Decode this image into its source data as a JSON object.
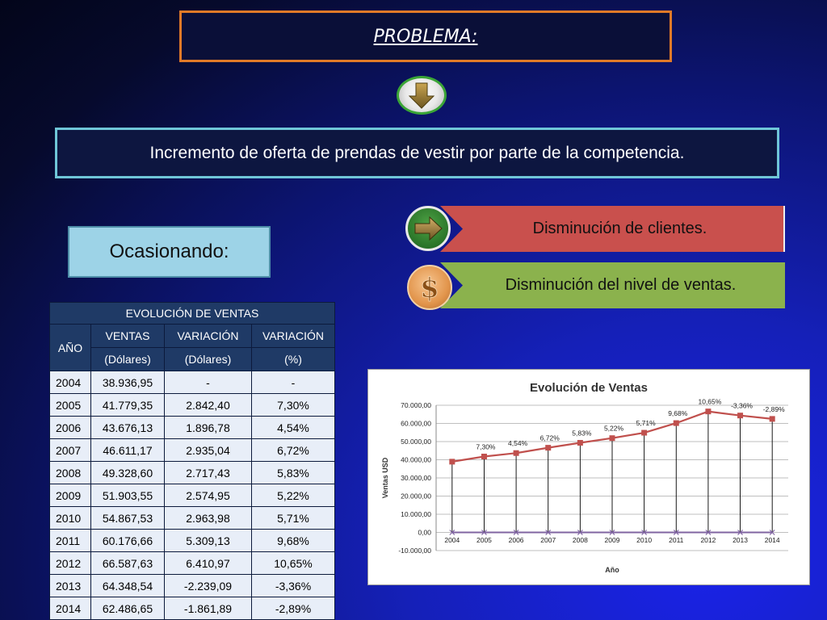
{
  "title": "PROBLEMA:",
  "problem": "Incremento de oferta de prendas de vestir por parte de la competencia.",
  "cause_label": "Ocasionando:",
  "effects": [
    {
      "label": "Disminución de clientes.",
      "color": "#c9504d",
      "icon": "right-arrow-icon"
    },
    {
      "label": "Disminución del nivel de ventas.",
      "color": "#8bb24d",
      "icon": "dollar-icon"
    }
  ],
  "table": {
    "title": "EVOLUCIÓN DE VENTAS",
    "col_year": "AÑO",
    "col_sales_1": "VENTAS",
    "col_sales_2": "(Dólares)",
    "col_var_1": "VARIACIÓN",
    "col_var_2": "(Dólares)",
    "col_pct_1": "VARIACIÓN",
    "col_pct_2": "(%)",
    "rows": [
      [
        "2004",
        "38.936,95",
        "-",
        "-"
      ],
      [
        "2005",
        "41.779,35",
        "2.842,40",
        "7,30%"
      ],
      [
        "2006",
        "43.676,13",
        "1.896,78",
        "4,54%"
      ],
      [
        "2007",
        "46.611,17",
        "2.935,04",
        "6,72%"
      ],
      [
        "2008",
        "49.328,60",
        "2.717,43",
        "5,83%"
      ],
      [
        "2009",
        "51.903,55",
        "2.574,95",
        "5,22%"
      ],
      [
        "2010",
        "54.867,53",
        "2.963,98",
        "5,71%"
      ],
      [
        "2011",
        "60.176,66",
        "5.309,13",
        "9,68%"
      ],
      [
        "2012",
        "66.587,63",
        "6.410,97",
        "10,65%"
      ],
      [
        "2013",
        "64.348,54",
        "-2.239,09",
        "-3,36%"
      ],
      [
        "2014",
        "62.486,65",
        "-1.861,89",
        "-2,89%"
      ]
    ]
  },
  "chart_data": {
    "type": "line",
    "title": "Evolución de Ventas",
    "xlabel": "Año",
    "ylabel": "Ventas USD",
    "categories": [
      "2004",
      "2005",
      "2006",
      "2007",
      "2008",
      "2009",
      "2010",
      "2011",
      "2012",
      "2013",
      "2014"
    ],
    "values": [
      38936.95,
      41779.35,
      43676.13,
      46611.17,
      49328.6,
      51903.55,
      54867.53,
      60176.66,
      66587.63,
      64348.54,
      62486.65
    ],
    "data_labels": [
      "",
      "7,30%",
      "4,54%",
      "6,72%",
      "5,83%",
      "5,22%",
      "5,71%",
      "9,68%",
      "10,65%",
      "-3,36%",
      "-2,89%"
    ],
    "baseline_values": [
      0,
      0,
      0,
      0,
      0,
      0,
      0,
      0,
      0,
      0,
      0
    ],
    "ylim": [
      -10000,
      70000
    ],
    "yticks": [
      -10000,
      0,
      10000,
      20000,
      30000,
      40000,
      50000,
      60000,
      70000
    ],
    "ytick_labels": [
      "-10.000,00",
      "0,00",
      "10.000,00",
      "20.000,00",
      "30.000,00",
      "40.000,00",
      "50.000,00",
      "60.000,00",
      "70.000,00"
    ],
    "grid": true,
    "series_color": "#c0504d",
    "baseline_color": "#8064a2"
  }
}
